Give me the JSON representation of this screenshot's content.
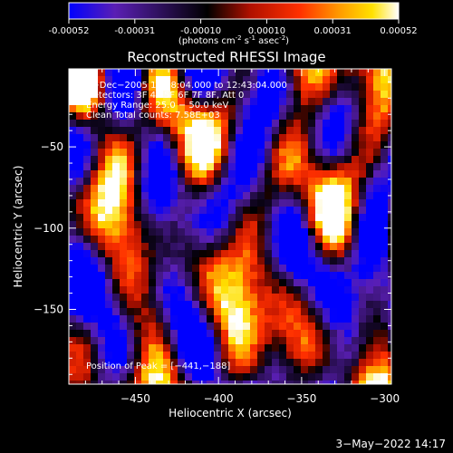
{
  "chart_data": {
    "type": "heatmap",
    "title": "Reconstructed RHESSI Image",
    "colorbar": {
      "ticks": [
        "-0.00052",
        "-0.00031",
        "-0.00010",
        "0.00010",
        "0.00031",
        "0.00052"
      ],
      "units_main": "(photons cm",
      "units_exp1": "-2",
      "units_mid1": " s",
      "units_exp2": "-1",
      "units_mid2": " asec",
      "units_exp3": "-2",
      "units_end": ")",
      "range": [
        -0.00052,
        0.00052
      ],
      "colormap": [
        "#0000ff",
        "#5a1fb4",
        "#000000",
        "#b01000",
        "#ff3000",
        "#ff9a00",
        "#ffe100",
        "#ffffff"
      ]
    },
    "xlabel": "Heliocentric X (arcsec)",
    "ylabel": "Heliocentric Y (arcsec)",
    "xlim": [
      -490,
      -296
    ],
    "ylim": [
      -196,
      -2
    ],
    "xticks": [
      {
        "value": -450,
        "label": "−450"
      },
      {
        "value": -400,
        "label": "−400"
      },
      {
        "value": -350,
        "label": "−350"
      },
      {
        "value": -300,
        "label": "−300"
      }
    ],
    "yticks": [
      {
        "value": -50,
        "label": "−50"
      },
      {
        "value": -100,
        "label": "−100"
      },
      {
        "value": -150,
        "label": "−150"
      }
    ],
    "annotations": [
      "1−Dec−2005 12:38:04.000 to 12:43:04.000",
      "Detectors: 3F 4F 5F 6F 7F 8F, Att 0",
      "Energy Range: 25.0 − 50.0 keV",
      "Clean     Total counts: 7.58E+03"
    ],
    "peak_label": "Position of Peak = [−441,−188]",
    "peak": [
      -441,
      -188
    ]
  },
  "footer": {
    "timestamp": "3−May−2022 14:17"
  }
}
